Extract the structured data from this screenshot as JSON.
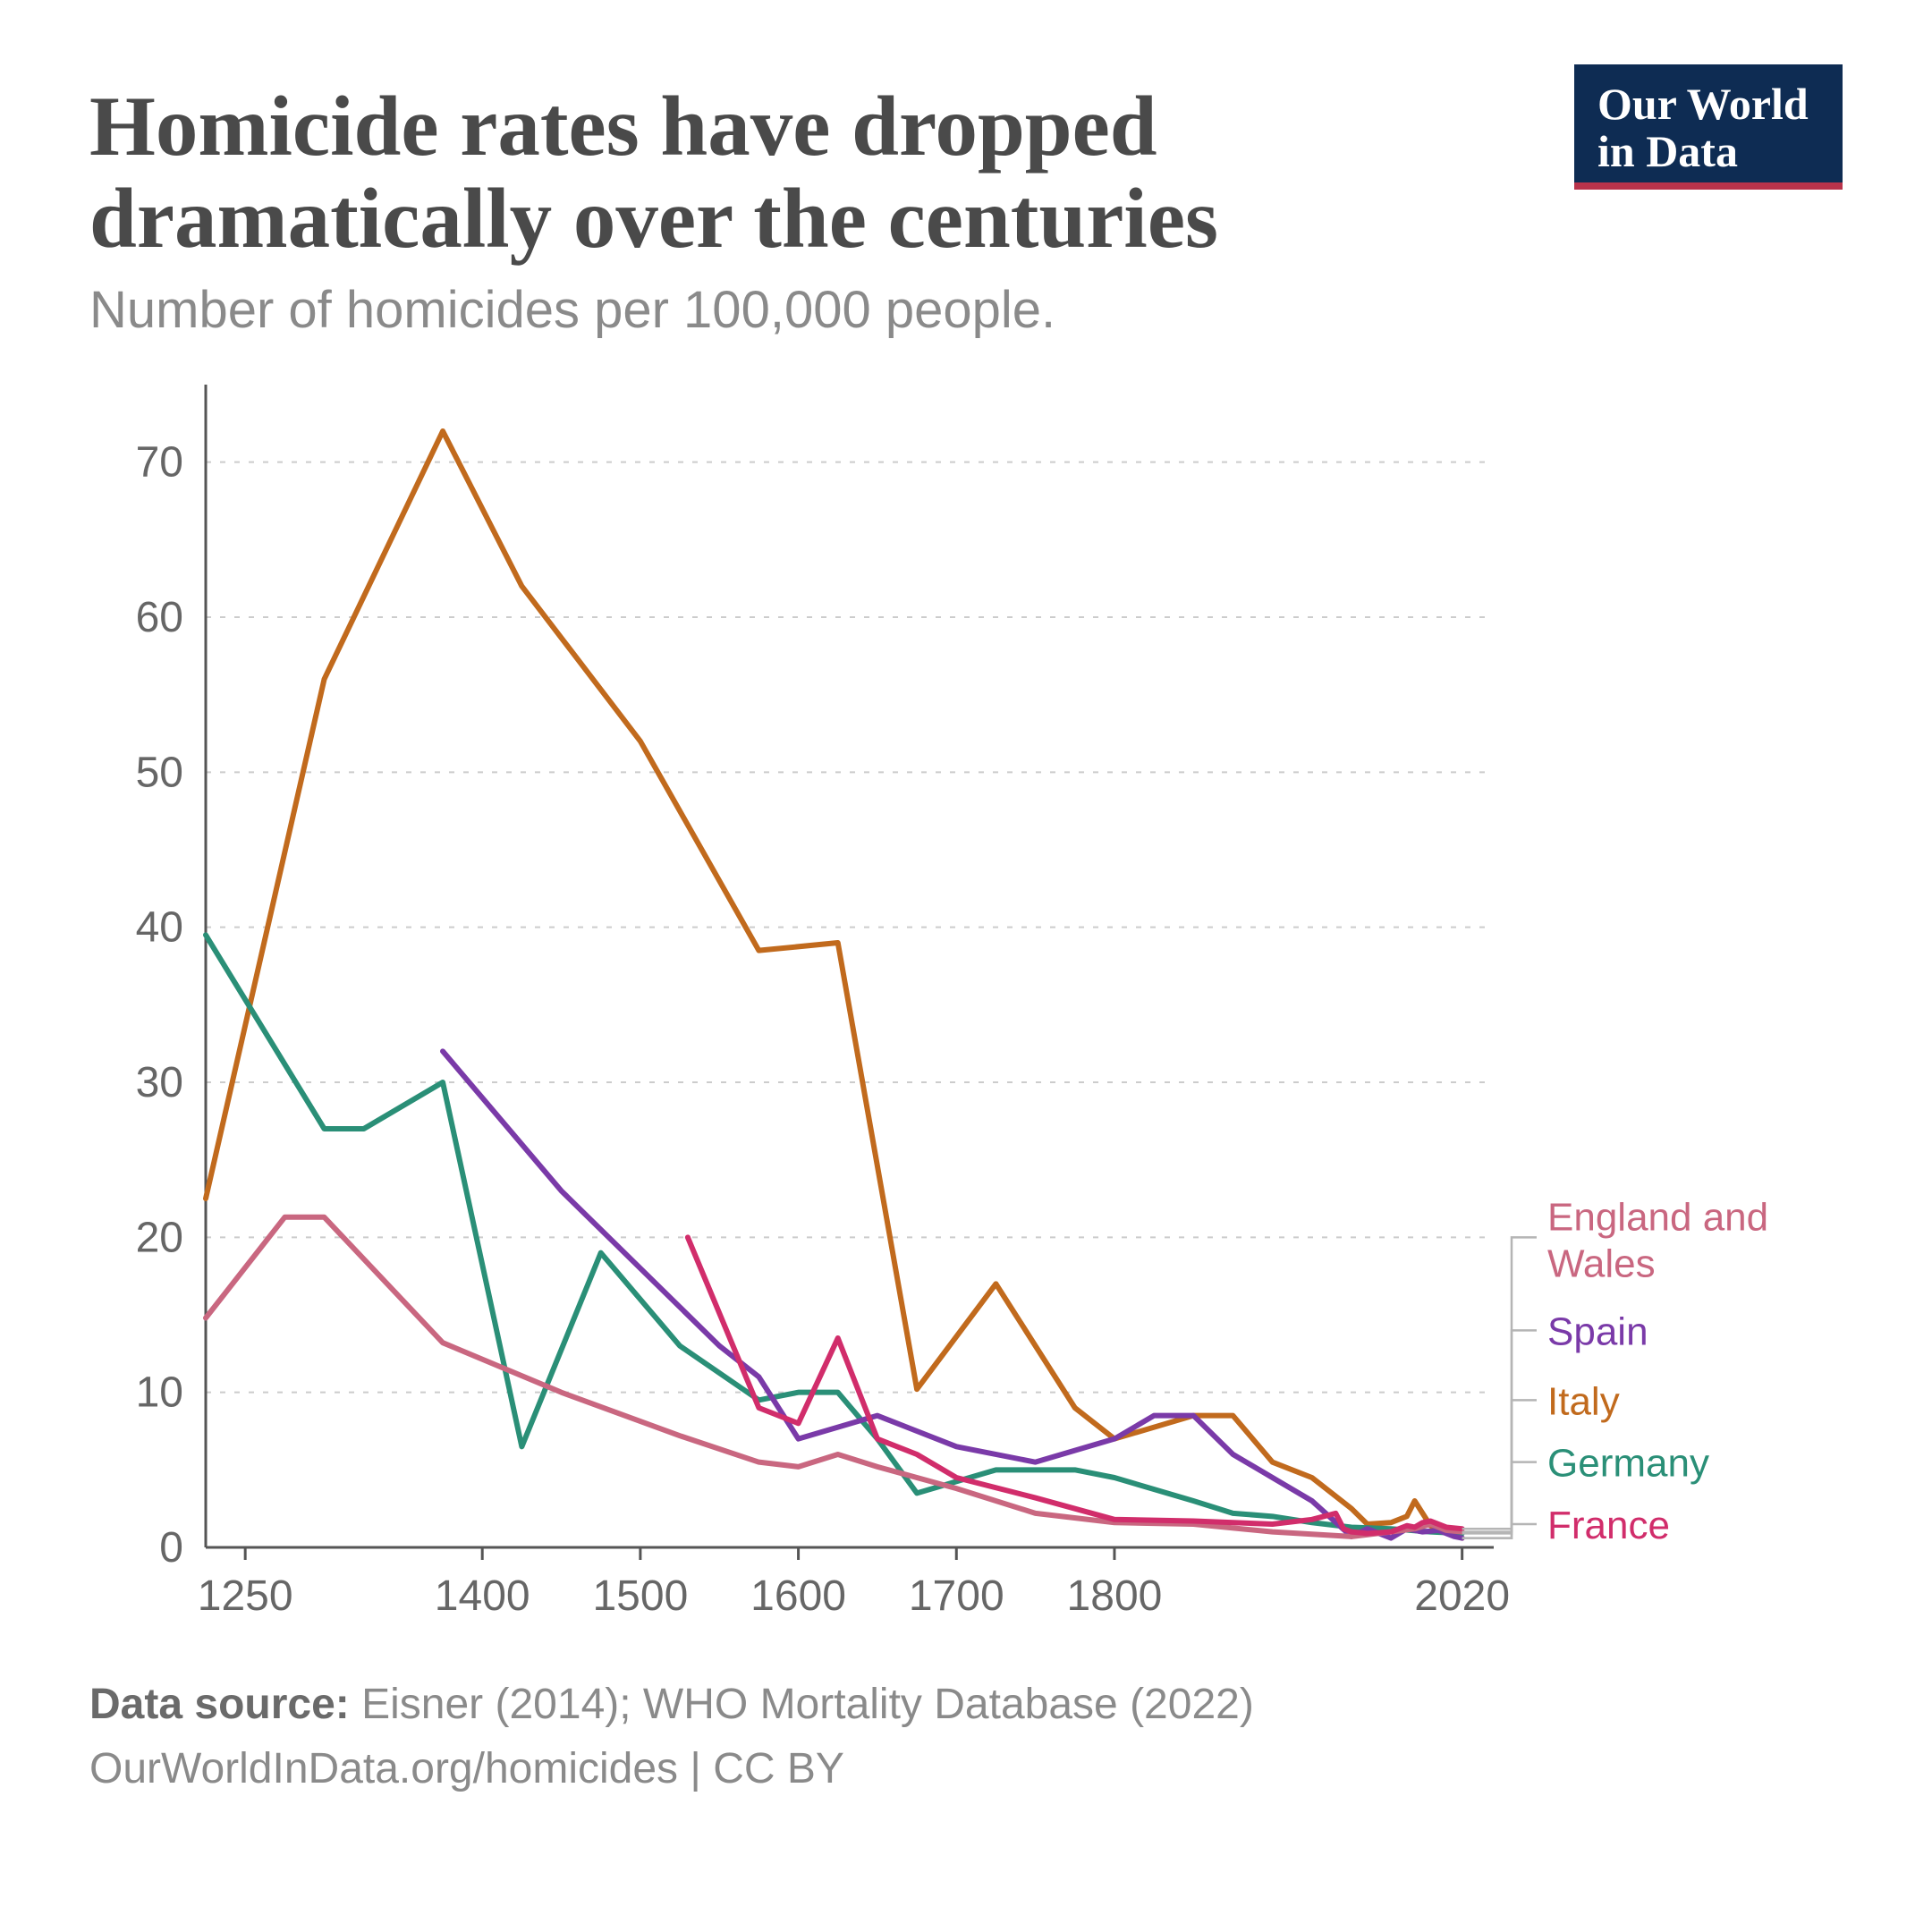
{
  "logo": {
    "line1": "Our World",
    "line2": "in Data",
    "bg": "#0e2c53",
    "underline": "#b8334b"
  },
  "title": "Homicide rates have dropped dramatically over the centuries",
  "subtitle": "Number of homicides per 100,000 people.",
  "footer": {
    "source_label": "Data source:",
    "source_text": "Eisner (2014); WHO Mortality Database (2022)",
    "link_line": "OurWorldInData.org/homicides | CC BY"
  },
  "chart": {
    "type": "line",
    "background_color": "#ffffff",
    "grid_color": "#cccccc",
    "axis_color": "#555555",
    "tick_color": "#666666",
    "tick_fontsize": 48,
    "line_width": 6,
    "xlim": [
      1225,
      2040
    ],
    "ylim": [
      0,
      75
    ],
    "yticks": [
      0,
      10,
      20,
      30,
      40,
      50,
      60,
      70
    ],
    "xticks": [
      1250,
      1400,
      1500,
      1600,
      1700,
      1800,
      2020
    ],
    "legend": [
      {
        "label": "England and Wales",
        "color": "#c96780"
      },
      {
        "label": "Spain",
        "color": "#7a3aa8"
      },
      {
        "label": "Italy",
        "color": "#c16a1d"
      },
      {
        "label": "Germany",
        "color": "#2a8f77"
      },
      {
        "label": "France",
        "color": "#d12d6b"
      }
    ],
    "series": {
      "italy": {
        "color": "#c16a1d",
        "points": [
          [
            1225,
            22.5
          ],
          [
            1300,
            56
          ],
          [
            1375,
            72
          ],
          [
            1425,
            62
          ],
          [
            1500,
            52
          ],
          [
            1575,
            38.5
          ],
          [
            1625,
            39
          ],
          [
            1675,
            10.2
          ],
          [
            1725,
            17
          ],
          [
            1775,
            9
          ],
          [
            1800,
            7
          ],
          [
            1850,
            8.5
          ],
          [
            1875,
            8.5
          ],
          [
            1900,
            5.5
          ],
          [
            1925,
            4.5
          ],
          [
            1950,
            2.5
          ],
          [
            1960,
            1.5
          ],
          [
            1975,
            1.6
          ],
          [
            1985,
            2.0
          ],
          [
            1990,
            3.0
          ],
          [
            1995,
            2.2
          ],
          [
            2000,
            1.4
          ],
          [
            2010,
            1.0
          ],
          [
            2020,
            0.6
          ]
        ]
      },
      "germany": {
        "color": "#2a8f77",
        "points": [
          [
            1225,
            39.5
          ],
          [
            1300,
            27
          ],
          [
            1325,
            27
          ],
          [
            1375,
            30
          ],
          [
            1425,
            6.5
          ],
          [
            1475,
            19
          ],
          [
            1500,
            16
          ],
          [
            1525,
            13
          ],
          [
            1575,
            9.5
          ],
          [
            1600,
            10
          ],
          [
            1625,
            10
          ],
          [
            1650,
            7
          ],
          [
            1675,
            3.5
          ],
          [
            1725,
            5
          ],
          [
            1775,
            5
          ],
          [
            1800,
            4.5
          ],
          [
            1850,
            3
          ],
          [
            1875,
            2.2
          ],
          [
            1900,
            2.0
          ],
          [
            1925,
            1.6
          ],
          [
            1950,
            1.3
          ],
          [
            1975,
            1.2
          ],
          [
            2000,
            1.0
          ],
          [
            2020,
            0.9
          ]
        ]
      },
      "spain": {
        "color": "#7a3aa8",
        "points": [
          [
            1375,
            32
          ],
          [
            1400,
            29
          ],
          [
            1450,
            23
          ],
          [
            1500,
            18
          ],
          [
            1550,
            13
          ],
          [
            1575,
            11
          ],
          [
            1600,
            7
          ],
          [
            1650,
            8.5
          ],
          [
            1700,
            6.5
          ],
          [
            1750,
            5.5
          ],
          [
            1800,
            7
          ],
          [
            1825,
            8.5
          ],
          [
            1850,
            8.5
          ],
          [
            1875,
            6
          ],
          [
            1900,
            4.5
          ],
          [
            1925,
            3
          ],
          [
            1950,
            0.7
          ],
          [
            1960,
            1.2
          ],
          [
            1975,
            0.6
          ],
          [
            1985,
            1.2
          ],
          [
            1995,
            1.0
          ],
          [
            2005,
            1.1
          ],
          [
            2015,
            0.7
          ],
          [
            2020,
            0.6
          ]
        ]
      },
      "england": {
        "color": "#c96780",
        "points": [
          [
            1225,
            14.8
          ],
          [
            1275,
            21.3
          ],
          [
            1300,
            21.3
          ],
          [
            1375,
            13.2
          ],
          [
            1450,
            10
          ],
          [
            1525,
            7.2
          ],
          [
            1575,
            5.5
          ],
          [
            1600,
            5.2
          ],
          [
            1625,
            6
          ],
          [
            1650,
            5.2
          ],
          [
            1700,
            3.8
          ],
          [
            1750,
            2.2
          ],
          [
            1800,
            1.6
          ],
          [
            1850,
            1.5
          ],
          [
            1900,
            1.0
          ],
          [
            1950,
            0.7
          ],
          [
            1975,
            1.0
          ],
          [
            1990,
            1.2
          ],
          [
            2000,
            1.5
          ],
          [
            2010,
            1.1
          ],
          [
            2020,
            1.0
          ]
        ]
      },
      "france": {
        "color": "#d12d6b",
        "points": [
          [
            1530,
            20
          ],
          [
            1575,
            9
          ],
          [
            1600,
            8
          ],
          [
            1625,
            13.5
          ],
          [
            1650,
            7
          ],
          [
            1675,
            6
          ],
          [
            1700,
            4.5
          ],
          [
            1750,
            3.2
          ],
          [
            1800,
            1.8
          ],
          [
            1850,
            1.7
          ],
          [
            1900,
            1.5
          ],
          [
            1925,
            1.8
          ],
          [
            1940,
            2.2
          ],
          [
            1945,
            1.2
          ],
          [
            1950,
            1.0
          ],
          [
            1960,
            0.9
          ],
          [
            1975,
            1.0
          ],
          [
            1985,
            1.4
          ],
          [
            1990,
            1.3
          ],
          [
            1995,
            1.6
          ],
          [
            2000,
            1.7
          ],
          [
            2010,
            1.3
          ],
          [
            2020,
            1.2
          ]
        ]
      }
    }
  }
}
